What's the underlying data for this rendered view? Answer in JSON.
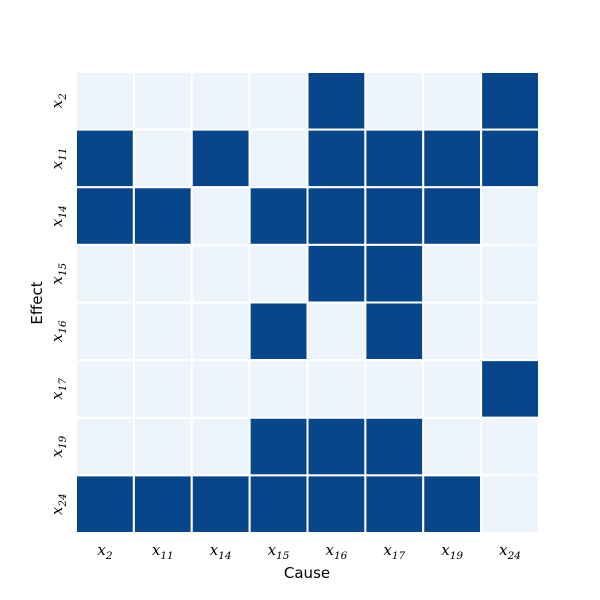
{
  "chart_data": {
    "type": "heatmap",
    "title": "",
    "xlabel": "Cause",
    "ylabel": "Effect",
    "x_labels": [
      {
        "base": "x",
        "sub": "2"
      },
      {
        "base": "x",
        "sub": "11"
      },
      {
        "base": "x",
        "sub": "14"
      },
      {
        "base": "x",
        "sub": "15"
      },
      {
        "base": "x",
        "sub": "16"
      },
      {
        "base": "x",
        "sub": "17"
      },
      {
        "base": "x",
        "sub": "19"
      },
      {
        "base": "x",
        "sub": "24"
      }
    ],
    "y_labels": [
      {
        "base": "x",
        "sub": "2"
      },
      {
        "base": "x",
        "sub": "11"
      },
      {
        "base": "x",
        "sub": "14"
      },
      {
        "base": "x",
        "sub": "15"
      },
      {
        "base": "x",
        "sub": "16"
      },
      {
        "base": "x",
        "sub": "17"
      },
      {
        "base": "x",
        "sub": "19"
      },
      {
        "base": "x",
        "sub": "24"
      }
    ],
    "values": [
      [
        0,
        0,
        0,
        0,
        1,
        0,
        0,
        1
      ],
      [
        1,
        0,
        1,
        0,
        1,
        1,
        1,
        1
      ],
      [
        1,
        1,
        0,
        1,
        1,
        1,
        1,
        0
      ],
      [
        0,
        0,
        0,
        0,
        1,
        1,
        0,
        0
      ],
      [
        0,
        0,
        0,
        1,
        0,
        1,
        0,
        0
      ],
      [
        0,
        0,
        0,
        0,
        0,
        0,
        0,
        1
      ],
      [
        0,
        0,
        0,
        1,
        1,
        1,
        0,
        0
      ],
      [
        1,
        1,
        1,
        1,
        1,
        1,
        1,
        0
      ]
    ],
    "colors": {
      "zero": "#edf4fc",
      "one": "#08468b",
      "gridline": "#ffffff"
    },
    "grid": true,
    "legend": false
  }
}
